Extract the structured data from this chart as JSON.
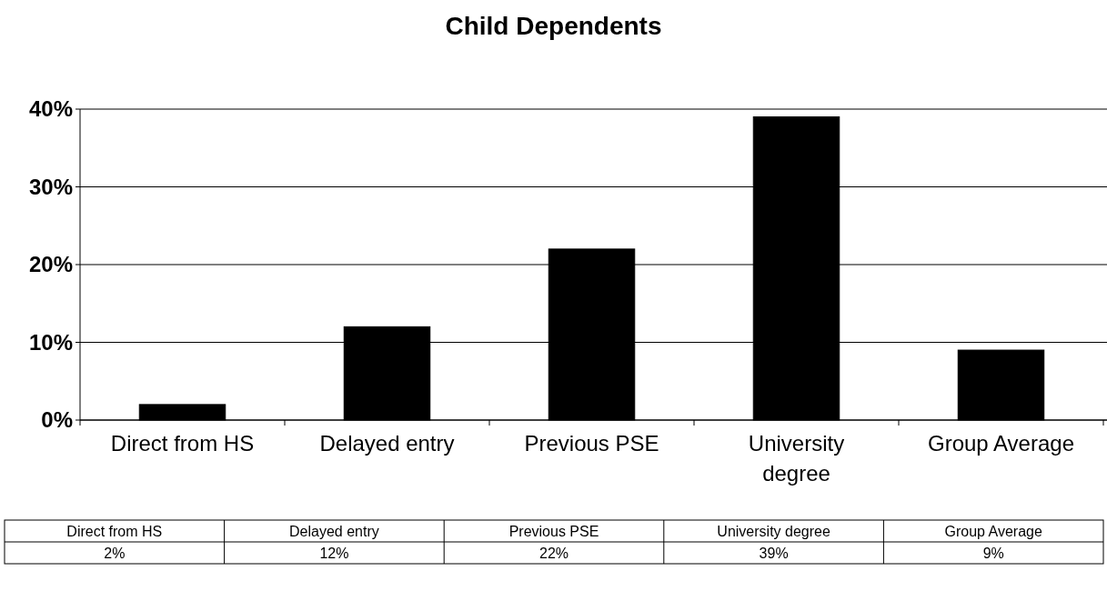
{
  "chart_data": {
    "type": "bar",
    "title": "Child Dependents",
    "categories": [
      "Direct from HS",
      "Delayed entry",
      "Previous PSE",
      "University degree",
      "Group Average"
    ],
    "values": [
      2,
      12,
      22,
      39,
      9
    ],
    "color": "#000000",
    "ylim": [
      0,
      40
    ],
    "yticks": [
      {
        "value": 0,
        "label": "0%"
      },
      {
        "value": 10,
        "label": "10%"
      },
      {
        "value": 20,
        "label": "20%"
      },
      {
        "value": 30,
        "label": "30%"
      },
      {
        "value": 40,
        "label": "40%"
      }
    ],
    "grid": "y",
    "data_labels": true,
    "value_labels": [
      "2%",
      "12%",
      "22%",
      "39%",
      "9%"
    ]
  }
}
